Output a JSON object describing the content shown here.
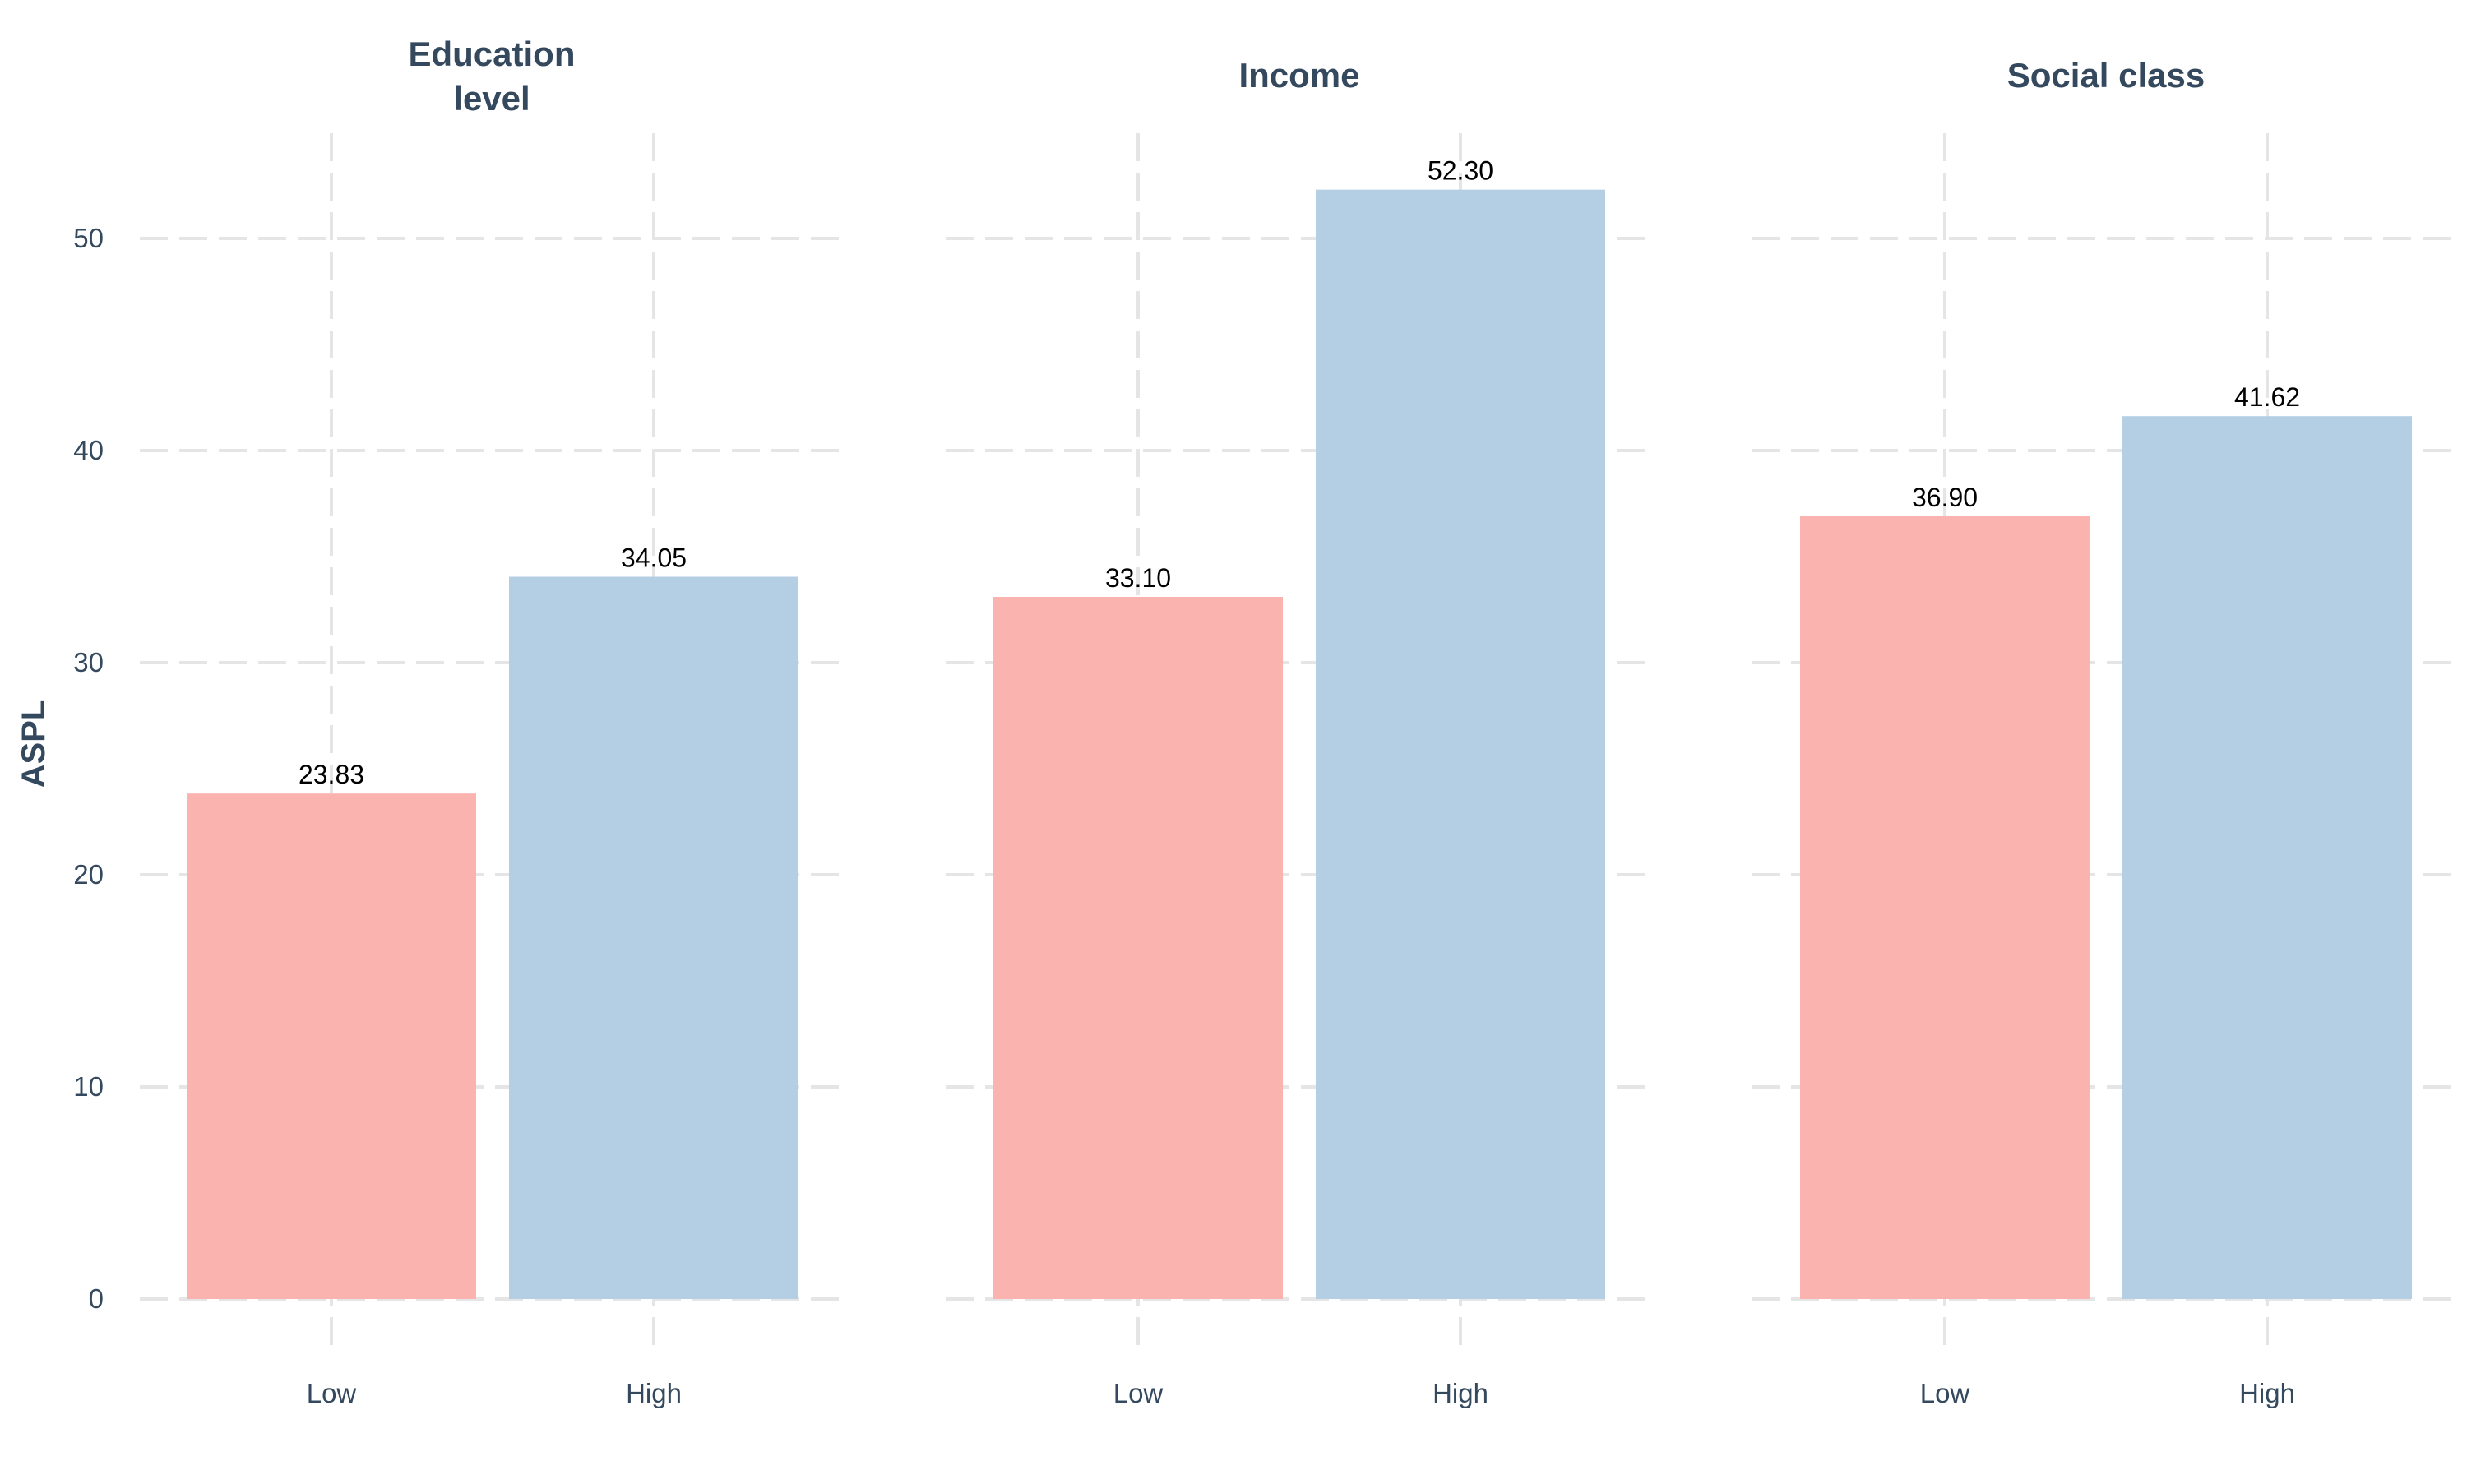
{
  "chart_data": {
    "type": "bar",
    "ylabel": "ASPL",
    "ylim": [
      0,
      55
    ],
    "yticks": [
      0,
      10,
      20,
      30,
      40,
      50
    ],
    "grid": true,
    "legend": "none",
    "colors": {
      "Low": "#fab3ae",
      "High": "#b4cee3",
      "text": "#34495e",
      "grid": "#e5e5e5",
      "bar_label": "#000000"
    },
    "facets": [
      {
        "title": "Education\nlevel",
        "categories": [
          "Low",
          "High"
        ],
        "values": [
          23.83,
          34.05
        ],
        "labels": [
          "23.83",
          "34.05"
        ]
      },
      {
        "title": "Income",
        "categories": [
          "Low",
          "High"
        ],
        "values": [
          33.1,
          52.3
        ],
        "labels": [
          "33.10",
          "52.30"
        ]
      },
      {
        "title": "Social class",
        "categories": [
          "Low",
          "High"
        ],
        "values": [
          36.9,
          41.62
        ],
        "labels": [
          "36.90",
          "41.62"
        ]
      }
    ]
  }
}
